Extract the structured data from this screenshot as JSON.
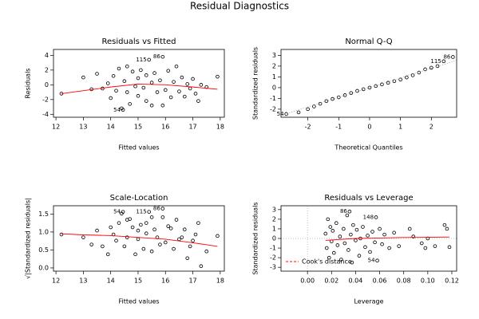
{
  "title": "Residual Diagnostics",
  "chart_data": [
    {
      "type": "scatter",
      "title": "Residuals vs Fitted",
      "xlabel": "Fitted values",
      "ylabel": "Residuals",
      "xlim": [
        11.91,
        18.15
      ],
      "ylim": [
        -4.4,
        4.8
      ],
      "xticks": [
        12,
        13,
        14,
        15,
        16,
        17,
        18
      ],
      "yticks": [
        -4,
        -2,
        0,
        2,
        4
      ],
      "series": [
        {
          "mode": "points",
          "color": "#000000",
          "x": [
            12.2,
            13.0,
            13.3,
            13.5,
            13.7,
            13.9,
            14.0,
            14.1,
            14.2,
            14.3,
            14.4,
            14.5,
            14.6,
            14.6,
            14.7,
            14.8,
            14.9,
            15.0,
            15.0,
            15.1,
            15.2,
            15.3,
            15.3,
            15.4,
            15.5,
            15.5,
            15.6,
            15.7,
            15.8,
            15.9,
            15.9,
            16.0,
            16.1,
            16.2,
            16.3,
            16.4,
            16.5,
            16.6,
            16.7,
            16.8,
            16.9,
            17.0,
            17.1,
            17.2,
            17.3,
            17.5,
            17.9,
            14.45
          ],
          "values": [
            -1.2,
            1.0,
            -0.6,
            1.5,
            -0.5,
            0.2,
            -1.8,
            1.2,
            -0.8,
            2.2,
            -3.2,
            0.5,
            -1.0,
            2.5,
            -2.6,
            1.8,
            -0.2,
            0.9,
            -1.5,
            2.0,
            -0.4,
            1.3,
            -2.2,
            3.4,
            0.3,
            -2.8,
            1.6,
            -1.0,
            0.6,
            3.8,
            -2.8,
            -0.7,
            1.9,
            -1.7,
            0.4,
            2.5,
            -0.9,
            1.0,
            -1.6,
            0.1,
            -0.5,
            0.8,
            -1.2,
            -2.2,
            0.0,
            -0.3,
            1.1,
            -3.4
          ]
        },
        {
          "mode": "line",
          "color": "#ff0000",
          "x": [
            12.2,
            13,
            14,
            15,
            16,
            17,
            17.9
          ],
          "values": [
            -1.2,
            -0.8,
            -0.3,
            0.1,
            0.0,
            -0.3,
            -0.6
          ]
        }
      ],
      "annotations": [
        {
          "text": "115",
          "x": 15.4,
          "y": 3.4
        },
        {
          "text": "86",
          "x": 15.9,
          "y": 3.8
        },
        {
          "text": "54",
          "x": 14.45,
          "y": -3.4
        }
      ]
    },
    {
      "type": "scatter",
      "title": "Normal Q-Q",
      "xlabel": "Theoretical Quantiles",
      "ylabel": "Standardized residuals",
      "xlim": [
        -2.87,
        2.82
      ],
      "ylim": [
        -2.75,
        3.55
      ],
      "xticks": [
        -2,
        -1,
        0,
        1,
        2
      ],
      "yticks": [
        -2,
        -1,
        0,
        1,
        2,
        3
      ],
      "series": [
        {
          "mode": "points",
          "color": "#000000",
          "x": [
            -2.7,
            -2.3,
            -2.0,
            -1.8,
            -1.6,
            -1.4,
            -1.2,
            -1.0,
            -0.8,
            -0.6,
            -0.4,
            -0.2,
            0,
            0.2,
            0.4,
            0.6,
            0.8,
            1.0,
            1.2,
            1.4,
            1.6,
            1.8,
            2.0,
            2.2,
            2.4,
            2.7
          ],
          "values": [
            -2.45,
            -2.3,
            -2.0,
            -1.75,
            -1.5,
            -1.25,
            -1.05,
            -0.9,
            -0.7,
            -0.5,
            -0.3,
            -0.15,
            0,
            0.15,
            0.3,
            0.45,
            0.6,
            0.75,
            0.95,
            1.15,
            1.4,
            1.7,
            1.85,
            2.0,
            2.45,
            2.85
          ]
        },
        {
          "mode": "dotted",
          "color": "#888888",
          "x": [
            -2.9,
            2.9
          ],
          "values": [
            -2.6,
            2.6
          ]
        }
      ],
      "annotations": [
        {
          "text": "54",
          "x": -2.7,
          "y": -2.45
        },
        {
          "text": "115",
          "x": 2.4,
          "y": 2.45
        },
        {
          "text": "86",
          "x": 2.7,
          "y": 2.85
        }
      ]
    },
    {
      "type": "scatter",
      "title": "Scale-Location",
      "xlabel": "Fitted values",
      "ylabel": "√|Standardized residuals|",
      "xlim": [
        11.91,
        18.15
      ],
      "ylim": [
        -0.09,
        1.73
      ],
      "xticks": [
        12,
        13,
        14,
        15,
        16,
        17,
        18
      ],
      "yticks": [
        {
          "value": 0,
          "label": "0.0"
        },
        {
          "value": 0.5,
          "label": "0.5"
        },
        {
          "value": 1,
          "label": "1.0"
        },
        {
          "value": 1.5,
          "label": "1.5"
        }
      ],
      "series": [
        {
          "mode": "points",
          "color": "#000000",
          "x": [
            12.2,
            13.0,
            13.3,
            13.5,
            13.7,
            13.9,
            14.0,
            14.1,
            14.2,
            14.3,
            14.4,
            14.5,
            14.6,
            14.6,
            14.7,
            14.8,
            14.9,
            15.0,
            15.0,
            15.1,
            15.2,
            15.3,
            15.3,
            15.4,
            15.5,
            15.5,
            15.6,
            15.7,
            15.8,
            15.9,
            15.9,
            16.0,
            16.1,
            16.2,
            16.3,
            16.4,
            16.5,
            16.6,
            16.7,
            16.8,
            16.9,
            17.0,
            17.1,
            17.2,
            17.3,
            17.5,
            17.9,
            14.45
          ],
          "values": [
            0.93,
            0.85,
            0.65,
            1.04,
            0.6,
            0.38,
            1.13,
            0.93,
            0.76,
            1.25,
            1.51,
            0.6,
            0.85,
            1.34,
            1.36,
            1.13,
            0.38,
            0.8,
            1.04,
            1.2,
            0.53,
            0.96,
            1.25,
            1.56,
            0.46,
            1.41,
            1.07,
            0.85,
            0.65,
            1.65,
            1.41,
            0.71,
            1.16,
            1.1,
            0.53,
            1.34,
            0.8,
            0.85,
            1.07,
            0.27,
            0.6,
            0.76,
            0.93,
            1.25,
            0.05,
            0.46,
            0.89,
            1.56
          ]
        },
        {
          "mode": "line",
          "color": "#ff0000",
          "x": [
            12.2,
            13,
            14,
            15,
            16,
            17,
            17.9
          ],
          "values": [
            0.95,
            0.92,
            0.9,
            0.85,
            0.8,
            0.7,
            0.6
          ]
        }
      ],
      "annotations": [
        {
          "text": "54",
          "x": 14.45,
          "y": 1.56
        },
        {
          "text": "115",
          "x": 15.4,
          "y": 1.56
        },
        {
          "text": "86",
          "x": 15.9,
          "y": 1.65
        }
      ]
    },
    {
      "type": "scatter",
      "title": "Residuals vs Leverage",
      "xlabel": "Leverage",
      "ylabel": "Standardized residuals",
      "xlim": [
        -0.022,
        0.124
      ],
      "ylim": [
        -3.4,
        3.4
      ],
      "xticks": [
        {
          "value": 0,
          "label": "0.00"
        },
        {
          "value": 0.02,
          "label": "0.02"
        },
        {
          "value": 0.04,
          "label": "0.04"
        },
        {
          "value": 0.06,
          "label": "0.06"
        },
        {
          "value": 0.08,
          "label": "0.08"
        },
        {
          "value": 0.1,
          "label": "0.10"
        },
        {
          "value": 0.12,
          "label": "0.12"
        }
      ],
      "yticks": [
        -3,
        -2,
        -1,
        0,
        1,
        2,
        3
      ],
      "series": [
        {
          "mode": "points",
          "color": "#000000",
          "x": [
            0.015,
            0.016,
            0.017,
            0.018,
            0.019,
            0.02,
            0.021,
            0.022,
            0.024,
            0.025,
            0.027,
            0.028,
            0.03,
            0.031,
            0.033,
            0.034,
            0.035,
            0.036,
            0.037,
            0.038,
            0.04,
            0.041,
            0.043,
            0.044,
            0.046,
            0.048,
            0.05,
            0.052,
            0.054,
            0.056,
            0.057,
            0.058,
            0.06,
            0.062,
            0.064,
            0.068,
            0.072,
            0.076,
            0.085,
            0.088,
            0.095,
            0.098,
            0.1,
            0.106,
            0.114,
            0.116,
            0.118
          ],
          "values": [
            0.5,
            -1.0,
            2.0,
            -2.0,
            1.2,
            -0.3,
            0.8,
            -1.5,
            1.6,
            -0.7,
            0.2,
            -2.2,
            1.0,
            -0.5,
            2.4,
            -1.2,
            2.8,
            0.4,
            -2.5,
            1.4,
            -0.2,
            0.9,
            -1.8,
            0.0,
            1.2,
            -0.9,
            0.3,
            -1.4,
            0.7,
            -0.4,
            2.2,
            -2.3,
            1.0,
            -0.6,
            0.4,
            -1.0,
            0.6,
            -0.8,
            1.0,
            0.2,
            -0.5,
            -1.0,
            0.0,
            -0.8,
            1.4,
            1.0,
            -0.9
          ]
        },
        {
          "mode": "line",
          "color": "#ff0000",
          "x": [
            0.015,
            0.04,
            0.06,
            0.08,
            0.1,
            0.118
          ],
          "values": [
            -0.2,
            0,
            0.05,
            0.1,
            0.12,
            0.15
          ]
        }
      ],
      "annotations": [
        {
          "text": "86",
          "x": 0.035,
          "y": 2.8
        },
        {
          "text": "148",
          "x": 0.057,
          "y": 2.2
        },
        {
          "text": "54",
          "x": 0.058,
          "y": -2.3
        }
      ],
      "legend": {
        "label": "Cook's distance",
        "color": "#ff0000",
        "corner": "bottomleft"
      }
    }
  ]
}
